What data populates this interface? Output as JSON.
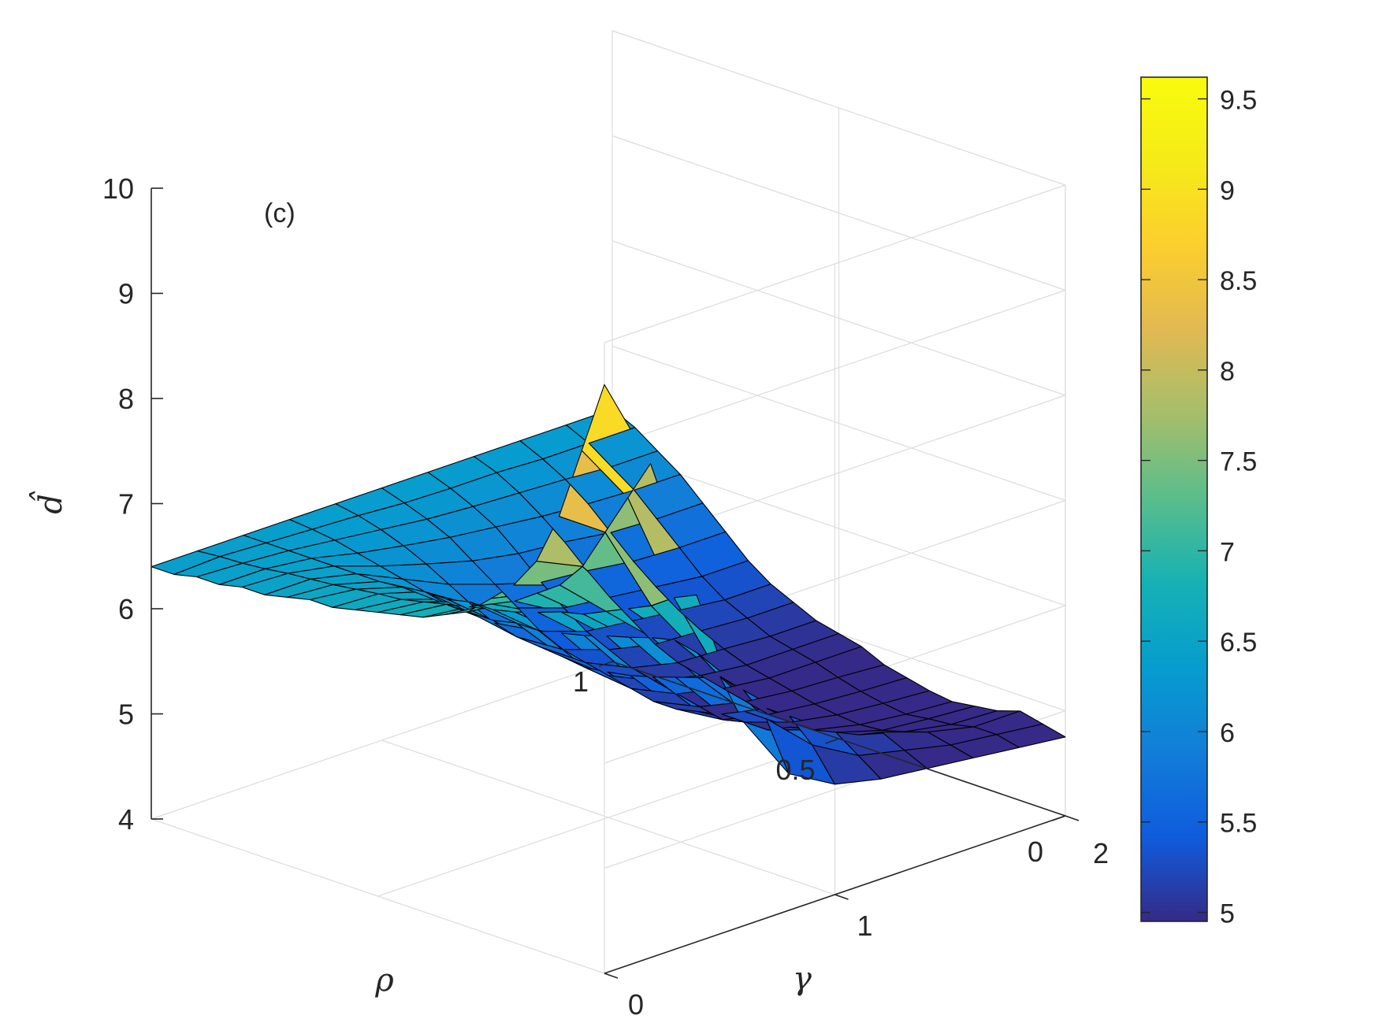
{
  "chart_data": {
    "type": "surface",
    "panel_label": "(c)",
    "xlabel": "ρ",
    "ylabel": "γ",
    "zlabel": "d̂",
    "xlim": [
      0,
      1
    ],
    "ylim": [
      0,
      2
    ],
    "zlim": [
      4,
      10
    ],
    "x_ticks": [
      0,
      0.5,
      1
    ],
    "x_tick_labels": [
      "0",
      "0.5",
      "1"
    ],
    "y_ticks": [
      0,
      1,
      2
    ],
    "y_tick_labels": [
      "0",
      "1",
      "2"
    ],
    "z_ticks": [
      4,
      5,
      6,
      7,
      8,
      9,
      10
    ],
    "z_tick_labels": [
      "4",
      "5",
      "6",
      "7",
      "8",
      "9",
      "10"
    ],
    "grid": true,
    "colormap": "parula",
    "colorbar": {
      "limits": [
        4.95,
        9.62
      ],
      "ticks": [
        5,
        5.5,
        6,
        6.5,
        7,
        7.5,
        8,
        8.5,
        9,
        9.5
      ],
      "tick_labels": [
        "5",
        "5.5",
        "6",
        "6.5",
        "7",
        "7.5",
        "8",
        "8.5",
        "9",
        "9.5"
      ],
      "location": "right"
    },
    "rho": [
      0,
      0.05,
      0.1,
      0.15,
      0.2,
      0.25,
      0.3,
      0.35,
      0.4,
      0.45,
      0.5,
      0.55,
      0.6,
      0.65,
      0.7,
      0.75,
      0.8,
      0.85,
      0.9,
      0.95,
      1
    ],
    "gamma": [
      0,
      0.2,
      0.4,
      0.6,
      0.8,
      1.0,
      1.2,
      1.4,
      1.6,
      1.8,
      2.0
    ],
    "z": [
      [
        9.6,
        8.9,
        8.2,
        7.7,
        7.4,
        7.2,
        7.0,
        6.9,
        6.8,
        6.75,
        6.7,
        6.65,
        6.6,
        6.6,
        6.55,
        6.5,
        6.5,
        6.45,
        6.45,
        6.4,
        6.4
      ],
      [
        8.7,
        8.3,
        7.9,
        7.5,
        7.25,
        7.1,
        6.95,
        6.85,
        6.75,
        6.7,
        6.65,
        6.6,
        6.58,
        6.55,
        6.52,
        6.5,
        6.48,
        6.45,
        6.43,
        6.42,
        6.4
      ],
      [
        7.3,
        7.2,
        7.05,
        6.95,
        6.85,
        6.75,
        6.7,
        6.62,
        6.55,
        6.5,
        6.5,
        6.45,
        6.45,
        6.42,
        6.4,
        6.4,
        6.4,
        6.4,
        6.4,
        6.4,
        6.4
      ],
      [
        5.95,
        6.3,
        6.45,
        6.5,
        6.45,
        6.38,
        6.32,
        6.25,
        6.2,
        6.15,
        6.15,
        6.1,
        6.1,
        6.1,
        6.15,
        6.2,
        6.25,
        6.3,
        6.35,
        6.38,
        6.4
      ],
      [
        5.3,
        5.75,
        5.95,
        6.0,
        5.92,
        5.85,
        5.78,
        5.72,
        5.68,
        5.65,
        5.68,
        5.7,
        5.72,
        5.78,
        5.88,
        6.0,
        6.12,
        6.22,
        6.3,
        6.36,
        6.4
      ],
      [
        5.05,
        5.35,
        5.55,
        5.55,
        5.45,
        5.35,
        5.3,
        5.25,
        5.25,
        5.3,
        5.35,
        5.4,
        5.45,
        5.55,
        5.7,
        5.85,
        6.0,
        6.15,
        6.25,
        6.33,
        6.4
      ],
      [
        4.95,
        5.1,
        5.25,
        5.2,
        5.15,
        5.05,
        5.05,
        5.0,
        5.05,
        5.1,
        5.15,
        5.2,
        5.3,
        5.4,
        5.55,
        5.72,
        5.92,
        6.1,
        6.22,
        6.32,
        6.4
      ],
      [
        4.9,
        5.0,
        5.1,
        5.0,
        4.95,
        4.9,
        4.9,
        4.9,
        4.95,
        5.0,
        5.05,
        5.1,
        5.2,
        5.35,
        5.5,
        5.68,
        5.88,
        6.05,
        6.2,
        6.32,
        6.4
      ],
      [
        4.85,
        4.9,
        4.95,
        4.88,
        4.82,
        4.8,
        4.82,
        4.85,
        4.9,
        4.95,
        5.0,
        5.08,
        5.18,
        5.3,
        5.45,
        5.62,
        5.82,
        6.02,
        6.18,
        6.3,
        6.4
      ],
      [
        4.8,
        4.85,
        4.85,
        4.8,
        4.78,
        4.75,
        4.78,
        4.82,
        4.88,
        4.95,
        5.0,
        5.05,
        5.15,
        5.25,
        5.4,
        5.6,
        5.8,
        6.0,
        6.15,
        6.3,
        6.4
      ],
      [
        4.75,
        4.8,
        4.85,
        4.78,
        4.75,
        4.72,
        4.75,
        4.8,
        4.85,
        4.95,
        5.0,
        5.05,
        5.15,
        5.25,
        5.4,
        5.6,
        5.8,
        6.0,
        6.15,
        6.3,
        6.4
      ]
    ]
  }
}
